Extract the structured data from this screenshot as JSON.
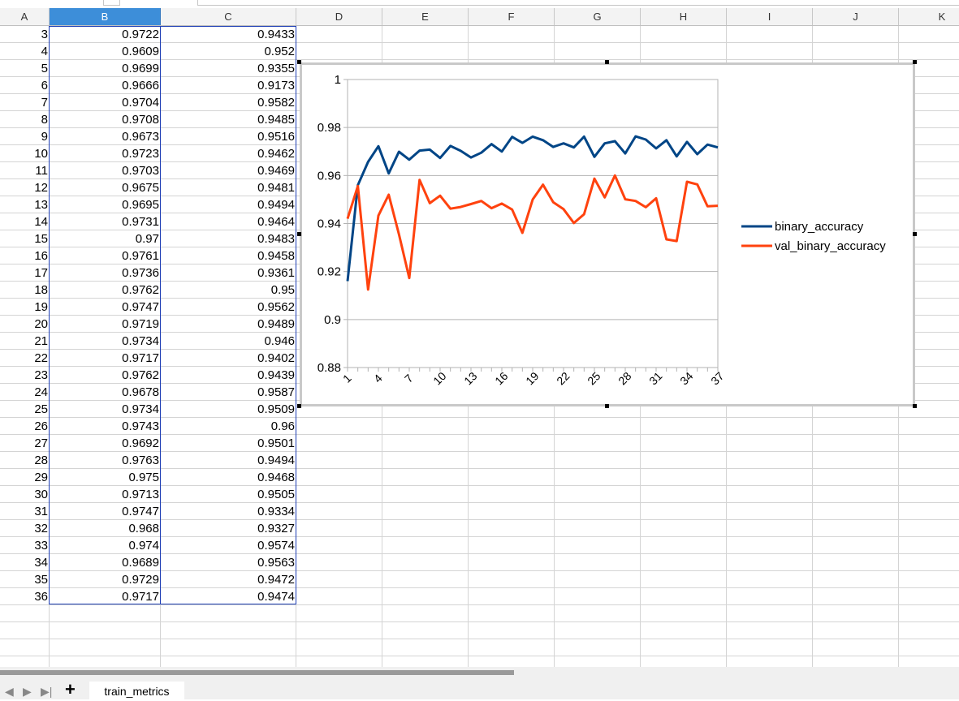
{
  "spreadsheet": {
    "columns": [
      "A",
      "B",
      "C",
      "D",
      "E",
      "F",
      "G",
      "H",
      "I",
      "J",
      "K"
    ],
    "selected_column": "B",
    "rows": [
      {
        "row": "3",
        "b": "0.9722",
        "c": "0.9433"
      },
      {
        "row": "4",
        "b": "0.9609",
        "c": "0.952"
      },
      {
        "row": "5",
        "b": "0.9699",
        "c": "0.9355"
      },
      {
        "row": "6",
        "b": "0.9666",
        "c": "0.9173"
      },
      {
        "row": "7",
        "b": "0.9704",
        "c": "0.9582"
      },
      {
        "row": "8",
        "b": "0.9708",
        "c": "0.9485"
      },
      {
        "row": "9",
        "b": "0.9673",
        "c": "0.9516"
      },
      {
        "row": "10",
        "b": "0.9723",
        "c": "0.9462"
      },
      {
        "row": "11",
        "b": "0.9703",
        "c": "0.9469"
      },
      {
        "row": "12",
        "b": "0.9675",
        "c": "0.9481"
      },
      {
        "row": "13",
        "b": "0.9695",
        "c": "0.9494"
      },
      {
        "row": "14",
        "b": "0.9731",
        "c": "0.9464"
      },
      {
        "row": "15",
        "b": "0.97",
        "c": "0.9483"
      },
      {
        "row": "16",
        "b": "0.9761",
        "c": "0.9458"
      },
      {
        "row": "17",
        "b": "0.9736",
        "c": "0.9361"
      },
      {
        "row": "18",
        "b": "0.9762",
        "c": "0.95"
      },
      {
        "row": "19",
        "b": "0.9747",
        "c": "0.9562"
      },
      {
        "row": "20",
        "b": "0.9719",
        "c": "0.9489"
      },
      {
        "row": "21",
        "b": "0.9734",
        "c": "0.946"
      },
      {
        "row": "22",
        "b": "0.9717",
        "c": "0.9402"
      },
      {
        "row": "23",
        "b": "0.9762",
        "c": "0.9439"
      },
      {
        "row": "24",
        "b": "0.9678",
        "c": "0.9587"
      },
      {
        "row": "25",
        "b": "0.9734",
        "c": "0.9509"
      },
      {
        "row": "26",
        "b": "0.9743",
        "c": "0.96"
      },
      {
        "row": "27",
        "b": "0.9692",
        "c": "0.9501"
      },
      {
        "row": "28",
        "b": "0.9763",
        "c": "0.9494"
      },
      {
        "row": "29",
        "b": "0.975",
        "c": "0.9468"
      },
      {
        "row": "30",
        "b": "0.9713",
        "c": "0.9505"
      },
      {
        "row": "31",
        "b": "0.9747",
        "c": "0.9334"
      },
      {
        "row": "32",
        "b": "0.968",
        "c": "0.9327"
      },
      {
        "row": "33",
        "b": "0.974",
        "c": "0.9574"
      },
      {
        "row": "34",
        "b": "0.9689",
        "c": "0.9563"
      },
      {
        "row": "35",
        "b": "0.9729",
        "c": "0.9472"
      },
      {
        "row": "36",
        "b": "0.9717",
        "c": "0.9474"
      }
    ]
  },
  "chart_data": {
    "type": "line",
    "title": "",
    "xlabel": "",
    "ylabel": "",
    "x": [
      1,
      2,
      3,
      4,
      5,
      6,
      7,
      8,
      9,
      10,
      11,
      12,
      13,
      14,
      15,
      16,
      17,
      18,
      19,
      20,
      21,
      22,
      23,
      24,
      25,
      26,
      27,
      28,
      29,
      30,
      31,
      32,
      33,
      34,
      35,
      36,
      37
    ],
    "x_tick_labels": [
      "1",
      "4",
      "7",
      "10",
      "13",
      "16",
      "19",
      "22",
      "25",
      "28",
      "31",
      "34",
      "37"
    ],
    "ylim": [
      0.88,
      1
    ],
    "y_tick_labels": [
      "1",
      "0.98",
      "0.96",
      "0.94",
      "0.92",
      "0.9",
      "0.88"
    ],
    "y_ticks": [
      1,
      0.98,
      0.96,
      0.94,
      0.92,
      0.9,
      0.88
    ],
    "grid": "horizontal",
    "legend_position": "right",
    "series": [
      {
        "name": "binary_accuracy",
        "color": "#004586",
        "values": [
          0.916,
          0.956,
          0.9657,
          0.9722,
          0.9609,
          0.9699,
          0.9666,
          0.9704,
          0.9708,
          0.9673,
          0.9723,
          0.9703,
          0.9675,
          0.9695,
          0.9731,
          0.97,
          0.9761,
          0.9736,
          0.9762,
          0.9747,
          0.9719,
          0.9734,
          0.9717,
          0.9762,
          0.9678,
          0.9734,
          0.9743,
          0.9692,
          0.9763,
          0.975,
          0.9713,
          0.9747,
          0.968,
          0.974,
          0.9689,
          0.9729,
          0.9717
        ]
      },
      {
        "name": "val_binary_accuracy",
        "color": "#ff420e",
        "values": [
          0.942,
          0.9556,
          0.9125,
          0.9433,
          0.952,
          0.9355,
          0.9173,
          0.9582,
          0.9485,
          0.9516,
          0.9462,
          0.9469,
          0.9481,
          0.9494,
          0.9464,
          0.9483,
          0.9458,
          0.9361,
          0.95,
          0.9562,
          0.9489,
          0.946,
          0.9402,
          0.9439,
          0.9587,
          0.9509,
          0.96,
          0.9501,
          0.9494,
          0.9468,
          0.9505,
          0.9334,
          0.9327,
          0.9574,
          0.9563,
          0.9472,
          0.9474
        ]
      }
    ]
  },
  "sheet_tabs": {
    "active": "train_metrics",
    "add_label": "+",
    "nav_first": "◀",
    "nav_prev": "▶",
    "nav_last": "▶|"
  }
}
